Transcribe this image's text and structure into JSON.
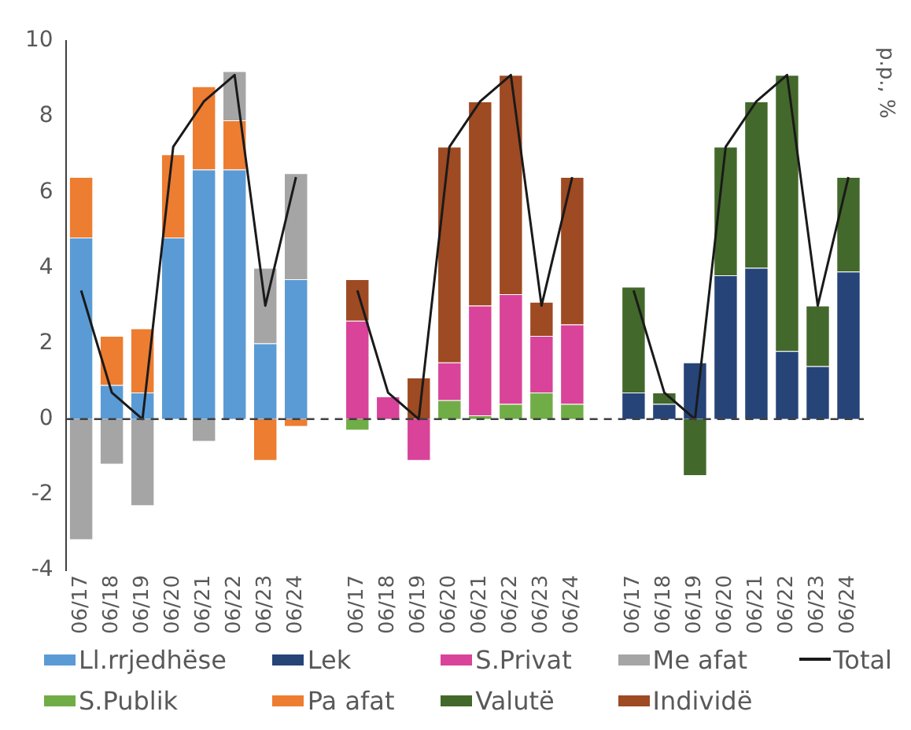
{
  "chart_data": {
    "type": "bar",
    "stacked": true,
    "ylabel": "p.p., %",
    "categories": [
      "06/17",
      "06/18",
      "06/19",
      "06/20",
      "06/21",
      "06/22",
      "06/23",
      "06/24",
      null,
      "06/17",
      "06/18",
      "06/19",
      "06/20",
      "06/21",
      "06/22",
      "06/23",
      "06/24",
      null,
      "06/17",
      "06/18",
      "06/19",
      "06/20",
      "06/21",
      "06/22",
      "06/23",
      "06/24"
    ],
    "series": [
      {
        "name": "Ll.rrjedhëse",
        "color": "#5b9bd5",
        "values": [
          4.8,
          0.9,
          0.7,
          4.8,
          6.6,
          6.6,
          2.0,
          3.7,
          null,
          null,
          null,
          null,
          null,
          null,
          null,
          null,
          null,
          null,
          null,
          null,
          null,
          null,
          null,
          null,
          null,
          null
        ]
      },
      {
        "name": "S.Publik",
        "color": "#70ad47",
        "values": [
          null,
          null,
          null,
          null,
          null,
          null,
          null,
          null,
          null,
          -0.3,
          0,
          0,
          0.5,
          0.1,
          0.4,
          0.7,
          0.4,
          null,
          null,
          null,
          null,
          null,
          null,
          null,
          null,
          null
        ]
      },
      {
        "name": "Lek",
        "color": "#264478",
        "values": [
          null,
          null,
          null,
          null,
          null,
          null,
          null,
          null,
          null,
          null,
          null,
          null,
          null,
          null,
          null,
          null,
          null,
          null,
          0.7,
          0.4,
          1.5,
          3.8,
          4.0,
          1.8,
          1.4,
          3.9
        ]
      },
      {
        "name": "Pa afat",
        "color": "#ed7d31",
        "values": [
          1.6,
          1.3,
          1.7,
          2.2,
          2.2,
          1.3,
          -1.1,
          -0.2,
          null,
          null,
          null,
          null,
          null,
          null,
          null,
          null,
          null,
          null,
          null,
          null,
          null,
          null,
          null,
          null,
          null,
          null
        ]
      },
      {
        "name": "S.Privat",
        "color": "#d9439a",
        "values": [
          null,
          null,
          null,
          null,
          null,
          null,
          null,
          null,
          null,
          2.6,
          0.6,
          -1.1,
          1.0,
          2.9,
          2.9,
          1.5,
          2.1,
          null,
          null,
          null,
          null,
          null,
          null,
          null,
          null,
          null
        ]
      },
      {
        "name": "Valutë",
        "color": "#43682b",
        "values": [
          null,
          null,
          null,
          null,
          null,
          null,
          null,
          null,
          null,
          null,
          null,
          null,
          null,
          null,
          null,
          null,
          null,
          null,
          2.8,
          0.3,
          -1.5,
          3.4,
          4.4,
          7.3,
          1.6,
          2.5
        ]
      },
      {
        "name": "Me afat",
        "color": "#a5a5a5",
        "values": [
          -3.2,
          -1.2,
          -2.3,
          0,
          -0.6,
          1.3,
          2.0,
          2.8,
          null,
          null,
          null,
          null,
          null,
          null,
          null,
          null,
          null,
          null,
          null,
          null,
          null,
          null,
          null,
          null,
          null,
          null
        ]
      },
      {
        "name": "Individë",
        "color": "#9e4a22",
        "values": [
          null,
          null,
          null,
          null,
          null,
          null,
          null,
          null,
          null,
          1.1,
          0,
          1.1,
          5.7,
          5.4,
          5.8,
          0.9,
          3.9,
          null,
          null,
          null,
          null,
          null,
          null,
          null,
          null,
          null
        ]
      },
      {
        "name": "Total",
        "type": "line",
        "color": "#1a1a1a",
        "values": [
          3.4,
          0.7,
          0,
          7.2,
          8.4,
          9.1,
          3.0,
          6.4,
          null,
          3.4,
          0.7,
          0,
          7.2,
          8.4,
          9.1,
          3.0,
          6.4,
          null,
          3.4,
          0.7,
          0,
          7.2,
          8.4,
          9.1,
          3.0,
          6.4
        ]
      }
    ],
    "ylim": [
      -4,
      10
    ],
    "yticks": [
      -4,
      -2,
      0,
      2,
      4,
      6,
      8,
      10
    ],
    "grid": false,
    "legend": "bottom",
    "marker": "none",
    "ref_lines": [
      {
        "axis": "y",
        "value": 0,
        "color": "#404040",
        "line_style": "dashed"
      }
    ]
  }
}
